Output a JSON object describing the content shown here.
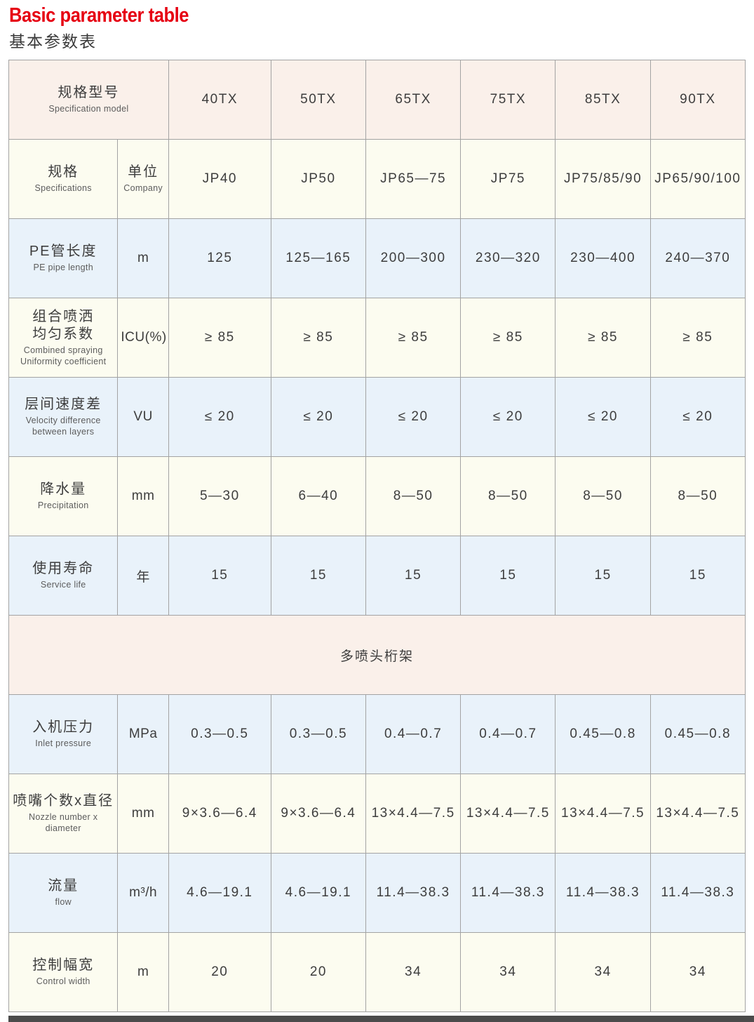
{
  "page": {
    "title_en": "Basic parameter table",
    "title_zh": "基本参数表"
  },
  "colors": {
    "title_red": "#e60012",
    "row_pink": "#faf0ea",
    "row_cream": "#fcfcf0",
    "row_blue": "#e9f2fa",
    "border_gray": "#a3a3a3",
    "text_dark": "#3d3d3d",
    "bottom_band": "#4b4b4b"
  },
  "table": {
    "rows": [
      {
        "type": "header",
        "bg": "pink",
        "label_zh": "规格型号",
        "label_en_lines": [
          "Specification  model"
        ],
        "values": [
          "40TX",
          "50TX",
          "65TX",
          "75TX",
          "85TX",
          "90TX"
        ]
      },
      {
        "type": "unit-header",
        "bg": "cream",
        "label_zh": "规格",
        "label_en_lines": [
          "Specifications"
        ],
        "unit_zh": "单位",
        "unit_en": "Company",
        "values": [
          "JP40",
          "JP50",
          "JP65—75",
          "JP75",
          "JP75/85/90",
          "JP65/90/100"
        ]
      },
      {
        "type": "data",
        "bg": "blue",
        "label_zh": "PE管长度",
        "label_en_lines": [
          "PE  pipe  length"
        ],
        "unit": "m",
        "values": [
          "125",
          "125—165",
          "200—300",
          "230—320",
          "230—400",
          "240—370"
        ]
      },
      {
        "type": "data",
        "bg": "cream",
        "label_zh_lines": [
          "组合喷洒",
          "均匀系数"
        ],
        "label_en_lines": [
          "Combined  spraying",
          "Uniformity  coefficient"
        ],
        "unit": "ICU(%)",
        "values": [
          "≥ 85",
          "≥ 85",
          "≥ 85",
          "≥ 85",
          "≥ 85",
          "≥ 85"
        ]
      },
      {
        "type": "data",
        "bg": "blue",
        "label_zh": "层间速度差",
        "label_en_lines": [
          "Velocity  difference",
          "between  layers"
        ],
        "unit": "VU",
        "values": [
          "≤ 20",
          "≤ 20",
          "≤ 20",
          "≤ 20",
          "≤ 20",
          "≤ 20"
        ]
      },
      {
        "type": "data",
        "bg": "cream",
        "label_zh": "降水量",
        "label_en_lines": [
          "Precipitation"
        ],
        "unit": "mm",
        "values": [
          "5—30",
          "6—40",
          "8—50",
          "8—50",
          "8—50",
          "8—50"
        ]
      },
      {
        "type": "data",
        "bg": "blue",
        "label_zh": "使用寿命",
        "label_en_lines": [
          "Service  life"
        ],
        "unit": "年",
        "values": [
          "15",
          "15",
          "15",
          "15",
          "15",
          "15"
        ]
      },
      {
        "type": "section",
        "bg": "pink",
        "label": "多喷头桁架"
      },
      {
        "type": "data",
        "bg": "blue",
        "label_zh": "入机压力",
        "label_en_lines": [
          "Inlet  pressure"
        ],
        "unit": "MPa",
        "values": [
          "0.3—0.5",
          "0.3—0.5",
          "0.4—0.7",
          "0.4—0.7",
          "0.45—0.8",
          "0.45—0.8"
        ]
      },
      {
        "type": "data",
        "bg": "cream",
        "label_zh": "喷嘴个数x直径",
        "label_en_lines": [
          "Nozzle  number  x  diameter"
        ],
        "unit": "mm",
        "values": [
          "9×3.6—6.4",
          "9×3.6—6.4",
          "13×4.4—7.5",
          "13×4.4—7.5",
          "13×4.4—7.5",
          "13×4.4—7.5"
        ]
      },
      {
        "type": "data",
        "bg": "blue",
        "label_zh": "流量",
        "label_en_lines": [
          "flow"
        ],
        "unit": "m³/h",
        "values": [
          "4.6—19.1",
          "4.6—19.1",
          "11.4—38.3",
          "11.4—38.3",
          "11.4—38.3",
          "11.4—38.3"
        ]
      },
      {
        "type": "data",
        "bg": "cream",
        "label_zh": "控制幅宽",
        "label_en_lines": [
          "Control  width"
        ],
        "unit": "m",
        "values": [
          "20",
          "20",
          "34",
          "34",
          "34",
          "34"
        ]
      }
    ]
  }
}
